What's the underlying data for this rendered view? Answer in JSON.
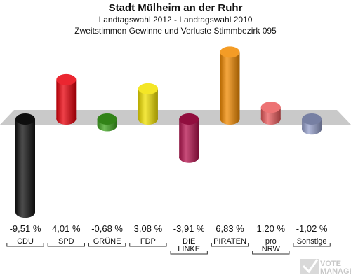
{
  "header": {
    "title": "Stadt Mülheim an der Ruhr",
    "subtitle1": "Landtagswahl 2012 - Landtagswahl 2010",
    "subtitle2": "Zweitstimmen Gewinne und Verluste Stimmbezirk 095"
  },
  "chart_data": {
    "type": "bar",
    "title": "Stadt Mülheim an der Ruhr",
    "subtitle": "Landtagswahl 2012 - Landtagswahl 2010 / Zweitstimmen Gewinne und Verluste Stimmbezirk 095",
    "categories": [
      "CDU",
      "SPD",
      "GRÜNE",
      "FDP",
      "DIE LINKE",
      "PIRATEN",
      "pro NRW",
      "Sonstige"
    ],
    "category_lines": [
      [
        "CDU"
      ],
      [
        "SPD"
      ],
      [
        "GRÜNE"
      ],
      [
        "FDP"
      ],
      [
        "DIE",
        "LINKE"
      ],
      [
        "PIRATEN"
      ],
      [
        "pro",
        "NRW"
      ],
      [
        "Sonstige"
      ]
    ],
    "values": [
      -9.51,
      4.01,
      -0.68,
      3.08,
      -3.91,
      6.83,
      1.2,
      -1.02
    ],
    "value_labels": [
      "-9,51 %",
      "4,01 %",
      "-0,68 %",
      "3,08 %",
      "-3,91 %",
      "6,83 %",
      "1,20 %",
      "-1,02 %"
    ],
    "colors": [
      "#111111",
      "#e8000b",
      "#3ea41e",
      "#f2e100",
      "#b5124e",
      "#f28a00",
      "#ea5a5c",
      "#95a0cc"
    ],
    "ylim": [
      -9.51,
      6.83
    ],
    "grid": false,
    "legend": "none"
  },
  "watermark": "VOTE MANAGER"
}
